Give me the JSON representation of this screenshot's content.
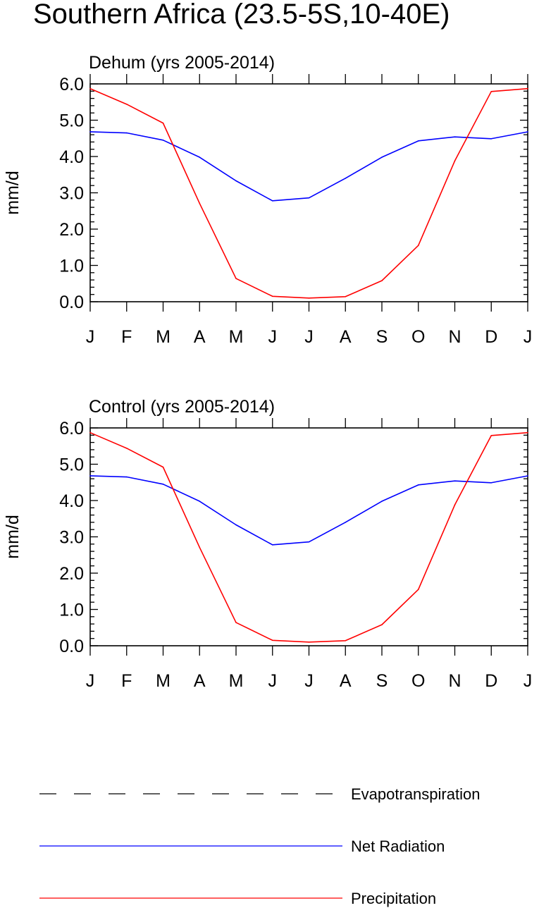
{
  "title": "Southern Africa (23.5-5S,10-40E)",
  "legend": [
    {
      "label": "Evapotranspiration",
      "color": "#000000",
      "dash": true
    },
    {
      "label": "Net Radiation",
      "color": "#0000ff",
      "dash": false
    },
    {
      "label": "Precipitation",
      "color": "#ff0000",
      "dash": false
    }
  ],
  "chart_data": [
    {
      "type": "line",
      "title": "Dehum (yrs 2005-2014)",
      "xlabel": "",
      "ylabel": "mm/d",
      "categories": [
        "J",
        "F",
        "M",
        "A",
        "M",
        "J",
        "J",
        "A",
        "S",
        "O",
        "N",
        "D",
        "J"
      ],
      "ylim": [
        0,
        6
      ],
      "yticks": [
        "0.0",
        "1.0",
        "2.0",
        "3.0",
        "4.0",
        "5.0",
        "6.0"
      ],
      "series": [
        {
          "name": "Net Radiation",
          "color": "#0000ff",
          "values": [
            4.68,
            4.65,
            4.45,
            3.98,
            3.33,
            2.78,
            2.86,
            3.4,
            3.98,
            4.43,
            4.54,
            4.49,
            4.68
          ]
        },
        {
          "name": "Precipitation",
          "color": "#ff0000",
          "values": [
            5.87,
            5.44,
            4.92,
            2.71,
            0.64,
            0.15,
            0.1,
            0.14,
            0.58,
            1.55,
            3.88,
            5.79,
            5.87
          ]
        }
      ]
    },
    {
      "type": "line",
      "title": "Control (yrs 2005-2014)",
      "xlabel": "",
      "ylabel": "mm/d",
      "categories": [
        "J",
        "F",
        "M",
        "A",
        "M",
        "J",
        "J",
        "A",
        "S",
        "O",
        "N",
        "D",
        "J"
      ],
      "ylim": [
        0,
        6
      ],
      "yticks": [
        "0.0",
        "1.0",
        "2.0",
        "3.0",
        "4.0",
        "5.0",
        "6.0"
      ],
      "series": [
        {
          "name": "Net Radiation",
          "color": "#0000ff",
          "values": [
            4.68,
            4.65,
            4.45,
            3.98,
            3.33,
            2.78,
            2.86,
            3.4,
            3.98,
            4.43,
            4.54,
            4.49,
            4.68
          ]
        },
        {
          "name": "Precipitation",
          "color": "#ff0000",
          "values": [
            5.87,
            5.44,
            4.92,
            2.71,
            0.64,
            0.15,
            0.1,
            0.14,
            0.58,
            1.55,
            3.88,
            5.79,
            5.87
          ]
        }
      ]
    }
  ]
}
